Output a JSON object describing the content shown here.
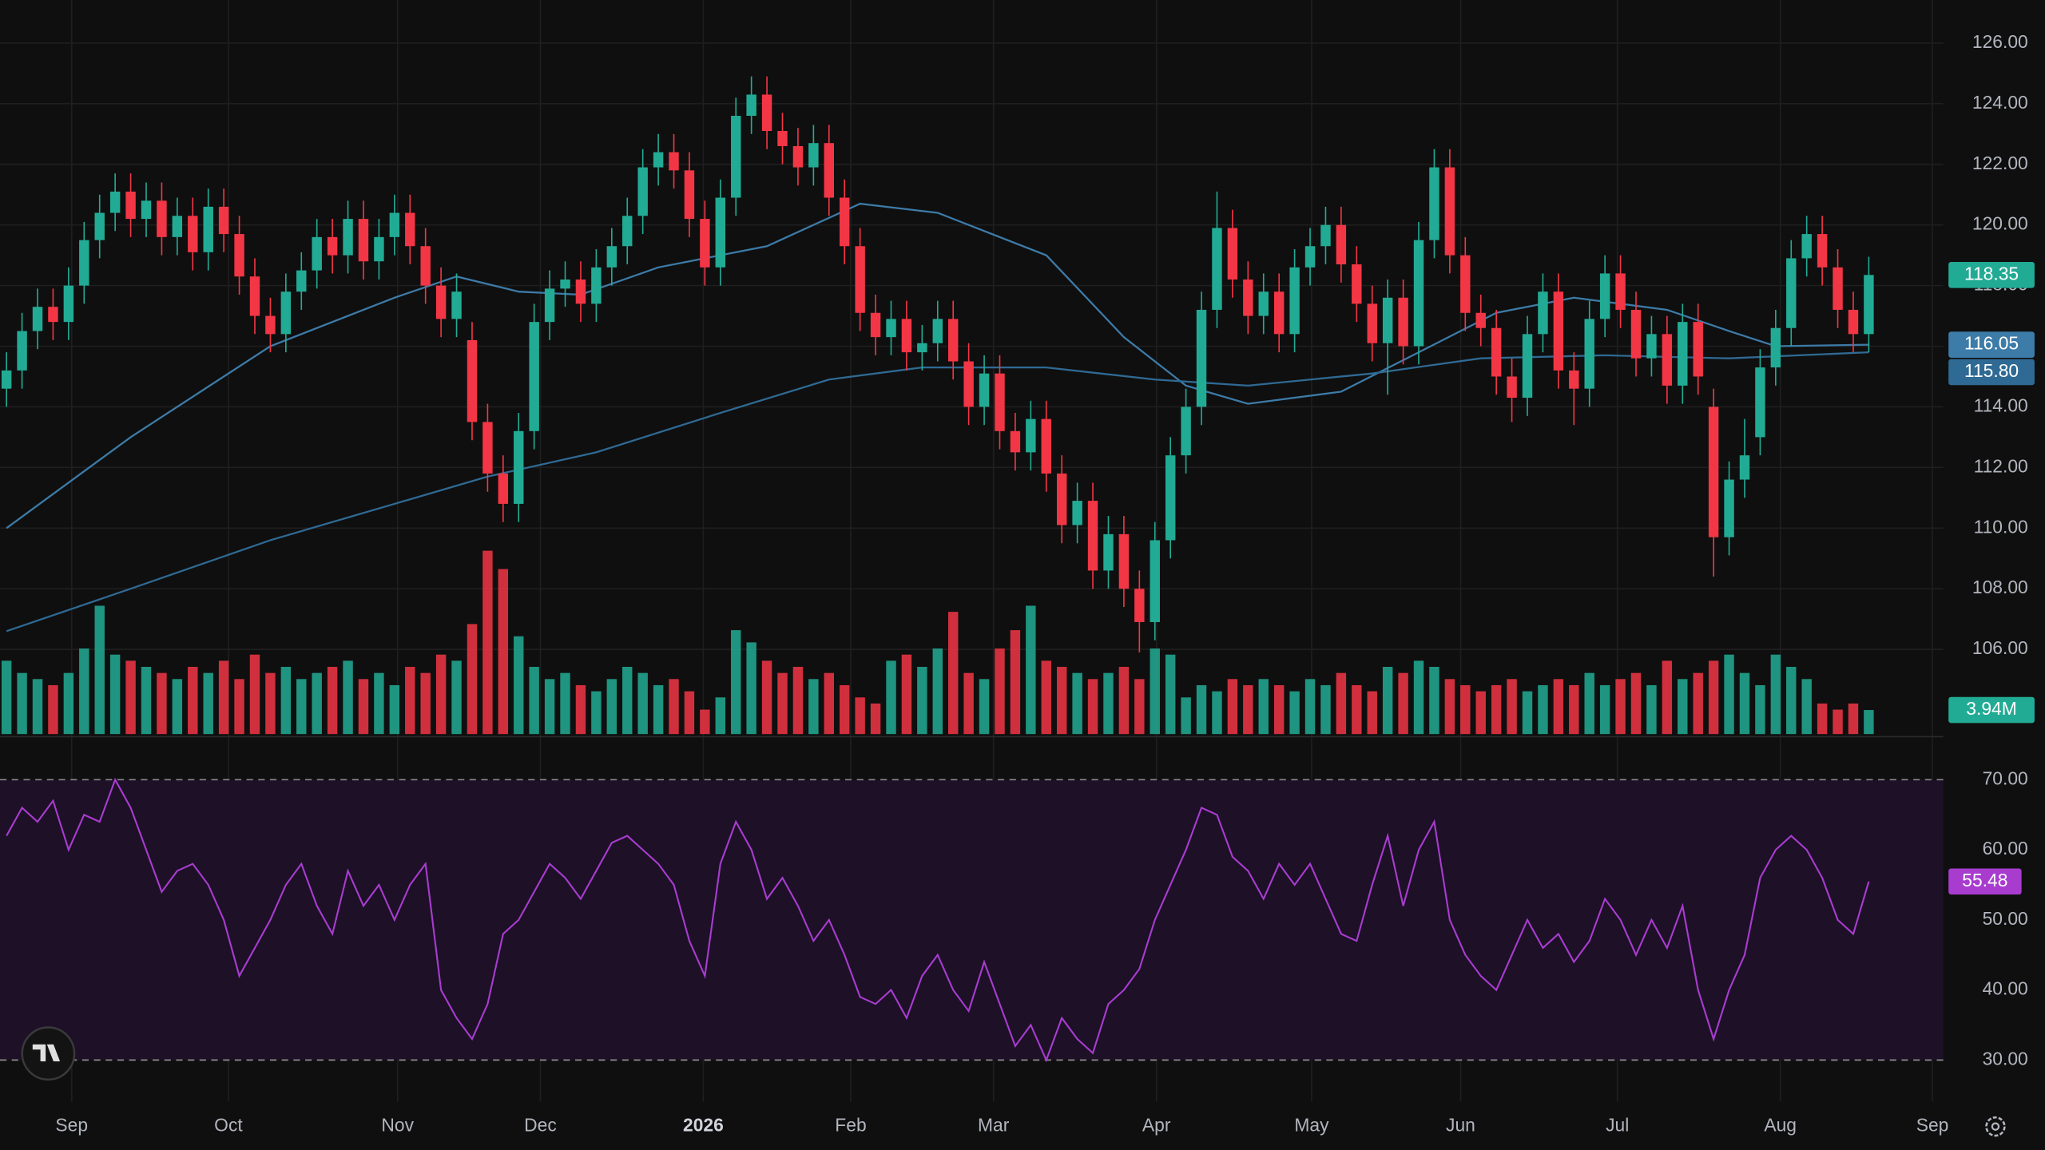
{
  "chart_data": [
    {
      "type": "candlestick",
      "up_color": "#22ab94",
      "down_color": "#f23645",
      "grid": true,
      "open": [
        114.6,
        115.2,
        116.5,
        117.3,
        116.8,
        118.0,
        119.5,
        120.4,
        121.1,
        120.2,
        120.8,
        119.6,
        120.3,
        119.1,
        120.6,
        119.7,
        118.3,
        117.0,
        116.4,
        117.8,
        118.5,
        119.6,
        119.0,
        120.2,
        118.8,
        119.6,
        120.4,
        119.3,
        118.0,
        116.9,
        116.2,
        113.5,
        111.8,
        110.8,
        113.2,
        116.8,
        117.9,
        118.2,
        117.4,
        118.6,
        119.3,
        120.3,
        121.9,
        122.4,
        121.8,
        120.2,
        118.6,
        120.9,
        123.6,
        124.3,
        123.1,
        122.6,
        121.9,
        122.7,
        120.9,
        119.3,
        117.1,
        116.3,
        116.9,
        115.8,
        116.1,
        116.9,
        115.5,
        114.0,
        115.1,
        113.2,
        112.5,
        113.6,
        111.8,
        110.1,
        110.9,
        108.6,
        109.8,
        108.0,
        106.9,
        109.6,
        112.4,
        114.0,
        117.2,
        119.9,
        118.2,
        117.0,
        117.8,
        116.4,
        118.6,
        119.3,
        120.0,
        118.7,
        117.4,
        116.1,
        117.6,
        116.0,
        119.5,
        121.9,
        119.0,
        117.1,
        116.6,
        115.0,
        114.3,
        116.4,
        117.8,
        115.2,
        114.6,
        116.9,
        118.4,
        117.2,
        115.6,
        116.4,
        114.7,
        116.8,
        114.0,
        109.7,
        111.6,
        113.0,
        115.3,
        116.6,
        118.9,
        119.7,
        118.6,
        117.2,
        116.4
      ],
      "high": [
        115.8,
        117.1,
        117.9,
        117.9,
        118.6,
        120.1,
        121.0,
        121.7,
        121.7,
        121.4,
        121.4,
        120.9,
        120.9,
        121.2,
        121.2,
        120.3,
        118.9,
        117.6,
        118.4,
        119.1,
        120.2,
        120.2,
        120.8,
        120.8,
        120.2,
        121.0,
        121.0,
        119.9,
        118.6,
        118.4,
        116.8,
        114.1,
        112.4,
        113.8,
        117.4,
        118.5,
        118.8,
        118.8,
        119.2,
        119.9,
        120.9,
        122.5,
        123.0,
        123.0,
        122.4,
        120.8,
        121.5,
        124.2,
        124.9,
        124.9,
        123.7,
        123.2,
        123.3,
        123.3,
        121.5,
        119.9,
        117.7,
        117.5,
        117.5,
        116.7,
        117.5,
        117.5,
        116.1,
        115.7,
        115.7,
        113.8,
        114.2,
        114.2,
        112.4,
        111.5,
        111.5,
        110.4,
        110.4,
        108.6,
        110.2,
        113.0,
        114.6,
        117.8,
        121.1,
        120.5,
        118.8,
        118.4,
        118.4,
        119.2,
        119.9,
        120.6,
        120.6,
        119.3,
        118.0,
        118.2,
        118.2,
        120.1,
        122.5,
        122.5,
        119.6,
        117.7,
        117.2,
        115.6,
        117.0,
        118.4,
        118.4,
        115.8,
        117.5,
        119.0,
        119.0,
        117.8,
        117.0,
        117.0,
        117.4,
        117.4,
        114.6,
        112.2,
        113.6,
        115.9,
        117.2,
        119.5,
        120.3,
        120.3,
        119.2,
        117.8,
        118.95
      ],
      "low": [
        114.0,
        114.6,
        115.9,
        116.2,
        116.2,
        117.4,
        118.9,
        119.8,
        119.6,
        119.6,
        119.0,
        119.0,
        118.5,
        118.5,
        119.1,
        117.7,
        116.4,
        115.8,
        115.8,
        117.2,
        117.9,
        118.4,
        118.4,
        118.2,
        118.2,
        119.0,
        118.7,
        117.4,
        116.3,
        116.3,
        112.9,
        111.2,
        110.2,
        110.2,
        112.6,
        116.2,
        117.3,
        116.8,
        116.8,
        118.0,
        118.7,
        119.7,
        121.3,
        121.2,
        119.6,
        118.0,
        118.0,
        120.3,
        123.0,
        122.5,
        122.0,
        121.3,
        121.3,
        120.3,
        118.7,
        116.5,
        115.7,
        115.7,
        115.2,
        115.2,
        115.5,
        114.9,
        113.4,
        113.4,
        112.6,
        111.9,
        111.9,
        111.2,
        109.5,
        109.5,
        108.0,
        108.0,
        107.4,
        105.9,
        106.3,
        109.0,
        111.8,
        113.4,
        116.6,
        117.6,
        116.4,
        116.4,
        115.8,
        115.8,
        118.0,
        118.7,
        118.1,
        116.8,
        115.5,
        114.4,
        115.4,
        115.4,
        118.9,
        118.4,
        116.5,
        116.0,
        114.4,
        113.5,
        113.7,
        115.8,
        114.6,
        113.4,
        114.0,
        116.3,
        116.6,
        115.0,
        115.0,
        114.1,
        114.1,
        114.4,
        108.4,
        109.1,
        111.0,
        112.4,
        114.7,
        116.0,
        118.3,
        118.0,
        116.6,
        115.8,
        115.8
      ],
      "close": [
        115.2,
        116.5,
        117.3,
        116.8,
        118.0,
        119.5,
        120.4,
        121.1,
        120.2,
        120.8,
        119.6,
        120.3,
        119.1,
        120.6,
        119.7,
        118.3,
        117.0,
        116.4,
        117.8,
        118.5,
        119.6,
        119.0,
        120.2,
        118.8,
        119.6,
        120.4,
        119.3,
        118.0,
        116.9,
        117.8,
        113.5,
        111.8,
        110.8,
        113.2,
        116.8,
        117.9,
        118.2,
        117.4,
        118.6,
        119.3,
        120.3,
        121.9,
        122.4,
        121.8,
        120.2,
        118.6,
        120.9,
        123.6,
        124.3,
        123.1,
        122.6,
        121.9,
        122.7,
        120.9,
        119.3,
        117.1,
        116.3,
        116.9,
        115.8,
        116.1,
        116.9,
        115.5,
        114.0,
        115.1,
        113.2,
        112.5,
        113.6,
        111.8,
        110.1,
        110.9,
        108.6,
        109.8,
        108.0,
        106.9,
        109.6,
        112.4,
        114.0,
        117.2,
        119.9,
        118.2,
        117.0,
        117.8,
        116.4,
        118.6,
        119.3,
        120.0,
        118.7,
        117.4,
        116.1,
        117.6,
        116.0,
        119.5,
        121.9,
        119.0,
        117.1,
        116.6,
        115.0,
        114.3,
        116.4,
        117.8,
        115.2,
        114.6,
        116.9,
        118.4,
        117.2,
        115.6,
        116.4,
        114.7,
        116.8,
        115.0,
        109.7,
        111.6,
        112.4,
        115.3,
        116.6,
        118.9,
        119.7,
        118.6,
        117.2,
        116.4,
        118.35
      ],
      "xlim": [
        -0.42,
        124.8
      ],
      "xticks": [
        {
          "value": 4.2,
          "label": "Sep"
        },
        {
          "value": 14.3,
          "label": "Oct"
        },
        {
          "value": 25.2,
          "label": "Nov"
        },
        {
          "value": 34.4,
          "label": "Dec"
        },
        {
          "value": 44.9,
          "label": "2026"
        },
        {
          "value": 54.4,
          "label": "Feb"
        },
        {
          "value": 63.6,
          "label": "Mar"
        },
        {
          "value": 74.1,
          "label": "Apr"
        },
        {
          "value": 84.1,
          "label": "May"
        },
        {
          "value": 93.7,
          "label": "Jun"
        },
        {
          "value": 103.8,
          "label": "Jul"
        },
        {
          "value": 114.3,
          "label": "Aug"
        },
        {
          "value": 124.1,
          "label": "Sep"
        }
      ],
      "ylim": [
        103.12,
        127.42
      ],
      "yticks": [
        {
          "value": 106,
          "label": "106.00"
        },
        {
          "value": 108,
          "label": "108.00"
        },
        {
          "value": 110,
          "label": "110.00"
        },
        {
          "value": 112,
          "label": "112.00"
        },
        {
          "value": 114,
          "label": "114.00"
        },
        {
          "value": 116,
          "label": "116.00"
        },
        {
          "value": 118,
          "label": "118.00"
        },
        {
          "value": 120,
          "label": "120.00"
        },
        {
          "value": 122,
          "label": "122.00"
        },
        {
          "value": 124,
          "label": "124.00"
        },
        {
          "value": 126,
          "label": "126.00"
        }
      ],
      "moving_averages": [
        {
          "color": "#3d7ba8",
          "x": [
            0,
            8,
            17,
            25,
            29,
            33,
            37,
            42,
            49,
            55,
            60,
            67,
            72,
            76,
            80,
            86,
            91,
            96,
            101,
            107,
            111,
            114,
            120
          ],
          "values": [
            110.0,
            113.0,
            116.0,
            117.6,
            118.3,
            117.8,
            117.7,
            118.6,
            119.3,
            120.7,
            120.4,
            119.0,
            116.3,
            114.7,
            114.1,
            114.5,
            115.8,
            117.1,
            117.6,
            117.2,
            116.5,
            116.0,
            116.05
          ]
        },
        {
          "color": "#2f6a94",
          "x": [
            0,
            8,
            17,
            25,
            31,
            38,
            46,
            53,
            59,
            67,
            74,
            80,
            88,
            95,
            103,
            111,
            120
          ],
          "values": [
            106.6,
            108.0,
            109.6,
            110.8,
            111.7,
            112.5,
            113.8,
            114.9,
            115.3,
            115.3,
            114.9,
            114.7,
            115.1,
            115.6,
            115.7,
            115.6,
            115.8
          ]
        }
      ],
      "price_tags": [
        {
          "value": 118.35,
          "label": "118.35"
        },
        {
          "value": 116.05,
          "label": "116.05"
        },
        {
          "value": 115.8,
          "label": "115.80"
        }
      ]
    },
    {
      "type": "bar",
      "values": [
        12,
        10,
        9,
        8,
        10,
        14,
        21,
        13,
        12,
        11,
        10,
        9,
        11,
        10,
        12,
        9,
        13,
        10,
        11,
        9,
        10,
        11,
        12,
        9,
        10,
        8,
        11,
        10,
        13,
        12,
        18,
        30,
        27,
        16,
        11,
        9,
        10,
        8,
        7,
        9,
        11,
        10,
        8,
        9,
        7,
        4,
        6,
        17,
        15,
        12,
        10,
        11,
        9,
        10,
        8,
        6,
        5,
        12,
        13,
        11,
        14,
        20,
        10,
        9,
        14,
        17,
        21,
        12,
        11,
        10,
        9,
        10,
        11,
        9,
        14,
        13,
        6,
        8,
        7,
        9,
        8,
        9,
        8,
        7,
        9,
        8,
        10,
        8,
        7,
        11,
        10,
        12,
        11,
        9,
        8,
        7,
        8,
        9,
        7,
        8,
        9,
        8,
        10,
        8,
        9,
        10,
        8,
        12,
        9,
        10,
        12,
        13,
        10,
        8,
        13,
        11,
        9,
        5,
        4,
        5,
        3.94
      ],
      "ylim": [
        0,
        32
      ],
      "last_tag": {
        "value": 3.94,
        "label": "3.94M"
      }
    },
    {
      "type": "line",
      "color": "#a83ccf",
      "band": [
        30,
        70
      ],
      "band_color": "#1d1027",
      "values": [
        62,
        66,
        64,
        67,
        60,
        65,
        64,
        70,
        66,
        60,
        54,
        57,
        58,
        55,
        50,
        42,
        46,
        50,
        55,
        58,
        52,
        48,
        57,
        52,
        55,
        50,
        55,
        58,
        40,
        36,
        33,
        38,
        48,
        50,
        54,
        58,
        56,
        53,
        57,
        61,
        62,
        60,
        58,
        55,
        47,
        42,
        58,
        64,
        60,
        53,
        56,
        52,
        47,
        50,
        45,
        39,
        38,
        40,
        36,
        42,
        45,
        40,
        37,
        44,
        38,
        32,
        35,
        30,
        36,
        33,
        31,
        38,
        40,
        43,
        50,
        55,
        60,
        66,
        65,
        59,
        57,
        53,
        58,
        55,
        58,
        53,
        48,
        47,
        55,
        62,
        52,
        60,
        64,
        50,
        45,
        42,
        40,
        45,
        50,
        46,
        48,
        44,
        47,
        53,
        50,
        45,
        50,
        46,
        52,
        40,
        33,
        40,
        45,
        56,
        60,
        62,
        60,
        56,
        50,
        48,
        55.48
      ],
      "ylim": [
        24.05,
        75.77
      ],
      "yticks": [
        {
          "value": 30,
          "label": "30.00"
        },
        {
          "value": 40,
          "label": "40.00"
        },
        {
          "value": 50,
          "label": "50.00"
        },
        {
          "value": 60,
          "label": "60.00"
        },
        {
          "value": 70,
          "label": "70.00"
        }
      ],
      "last_tag": {
        "value": 55.48,
        "label": "55.48"
      }
    }
  ]
}
